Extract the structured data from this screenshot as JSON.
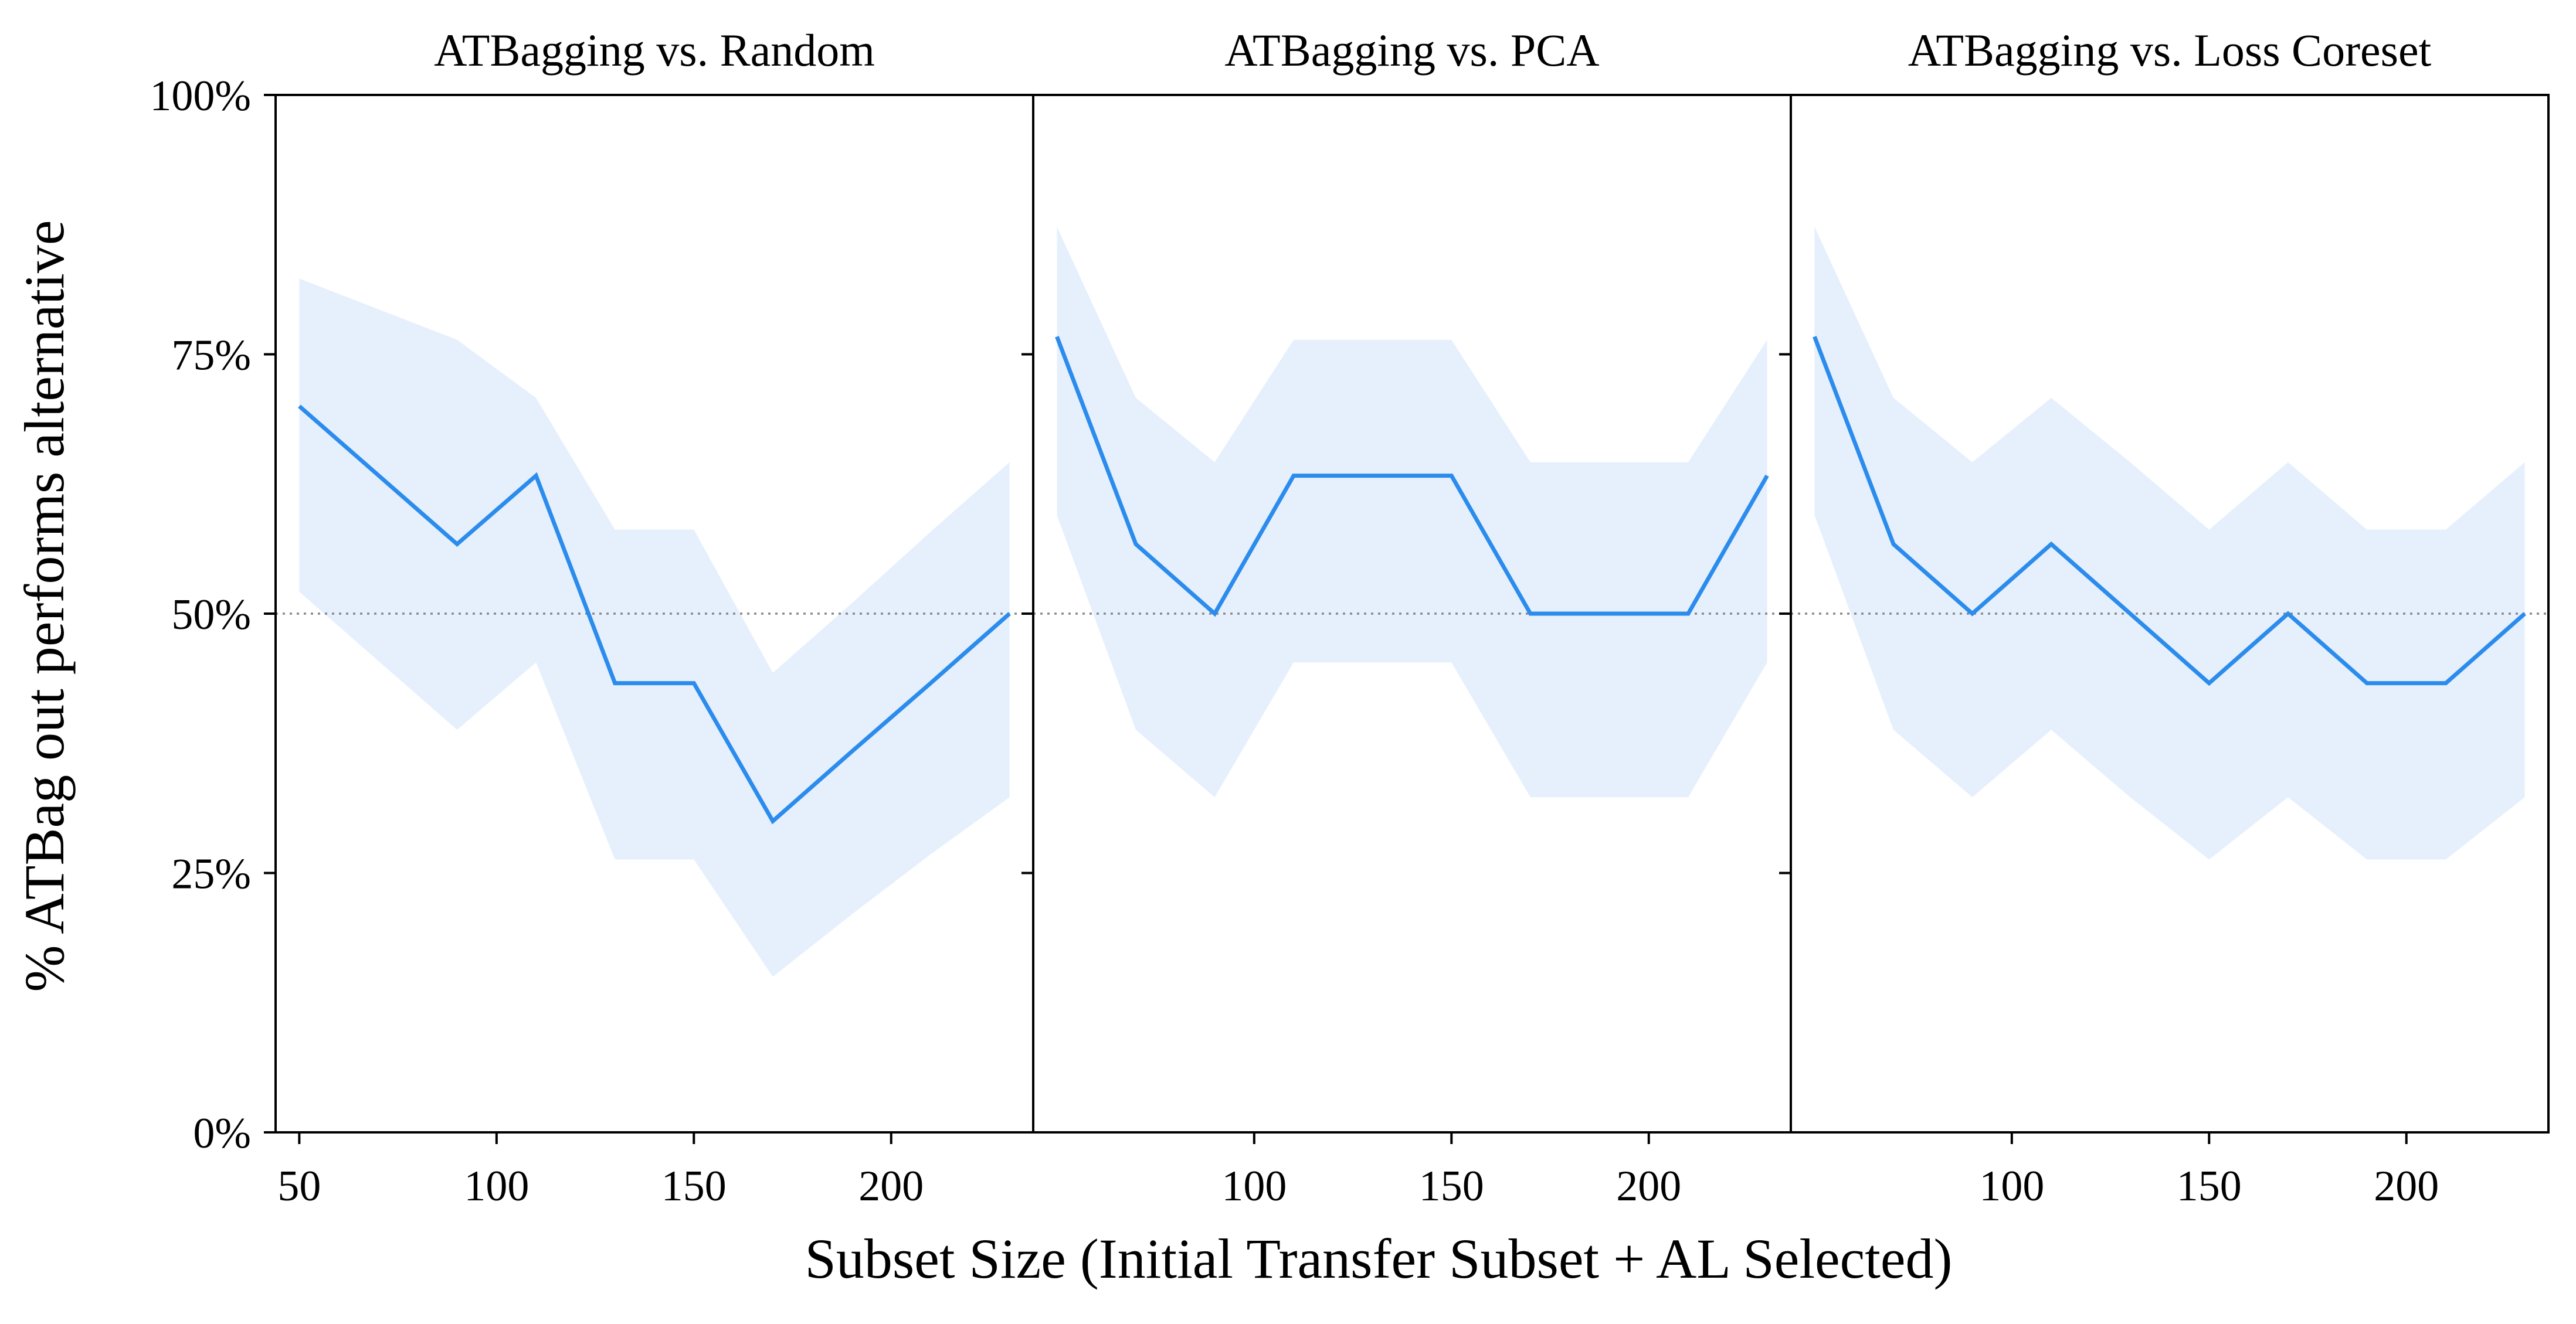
{
  "chart_data": {
    "type": "line",
    "xlabel": "Subset Size (Initial Transfer Subset + AL Selected)",
    "ylabel": "% ATBag out performs alternative",
    "ylim": [
      0,
      100
    ],
    "yticks": [
      0,
      25,
      50,
      75,
      100
    ],
    "ytick_labels": [
      "0%",
      "25%",
      "50%",
      "75%",
      "100%"
    ],
    "reference_line": {
      "y": 50,
      "style": "dotted",
      "color": "#888888"
    },
    "line_color": "#2b8ced",
    "band_color": "#e6f0fc",
    "panels": [
      {
        "title": "ATBagging vs. Random",
        "xlim": [
          44,
          236
        ],
        "xticks": [
          50,
          100,
          150,
          200
        ],
        "xtick_labels": [
          "50",
          "100",
          "150",
          "200"
        ],
        "x": [
          50,
          90,
          110,
          130,
          150,
          170,
          190,
          210,
          230
        ],
        "values": [
          70,
          56.7,
          63.3,
          43.3,
          43.3,
          30,
          36.7,
          43.3,
          50
        ],
        "ci_upper": [
          82.3,
          76.4,
          70.8,
          58.1,
          58.1,
          44.3,
          51.0,
          57.9,
          64.6
        ],
        "ci_lower": [
          52.1,
          38.8,
          45.3,
          26.3,
          26.3,
          15.0,
          21.0,
          26.8,
          32.3
        ]
      },
      {
        "title": "ATBagging vs. PCA",
        "xlim": [
          44,
          236
        ],
        "xticks": [
          100,
          150,
          200
        ],
        "xtick_labels": [
          "100",
          "150",
          "200"
        ],
        "x": [
          50,
          70,
          90,
          110,
          130,
          150,
          170,
          190,
          210,
          230
        ],
        "values": [
          76.7,
          56.7,
          50,
          63.3,
          63.3,
          63.3,
          50,
          50,
          50,
          63.3
        ],
        "ci_upper": [
          87.3,
          70.8,
          64.6,
          76.4,
          76.4,
          76.4,
          64.6,
          64.6,
          64.6,
          76.4
        ],
        "ci_lower": [
          59.5,
          38.8,
          32.3,
          45.3,
          45.3,
          45.3,
          32.3,
          32.3,
          32.3,
          45.3
        ]
      },
      {
        "title": "ATBagging vs. Loss Coreset",
        "xlim": [
          44,
          236
        ],
        "xticks": [
          100,
          150,
          200
        ],
        "xtick_labels": [
          "100",
          "150",
          "200"
        ],
        "x": [
          50,
          70,
          90,
          110,
          130,
          150,
          170,
          190,
          210,
          230
        ],
        "values": [
          76.7,
          56.7,
          50,
          56.7,
          50,
          43.3,
          50,
          43.3,
          43.3,
          50
        ],
        "ci_upper": [
          87.3,
          70.8,
          64.6,
          70.8,
          64.6,
          58.1,
          64.6,
          58.1,
          58.1,
          64.6
        ],
        "ci_lower": [
          59.5,
          38.8,
          32.3,
          38.8,
          32.3,
          26.3,
          32.3,
          26.3,
          26.3,
          32.3
        ]
      }
    ]
  }
}
